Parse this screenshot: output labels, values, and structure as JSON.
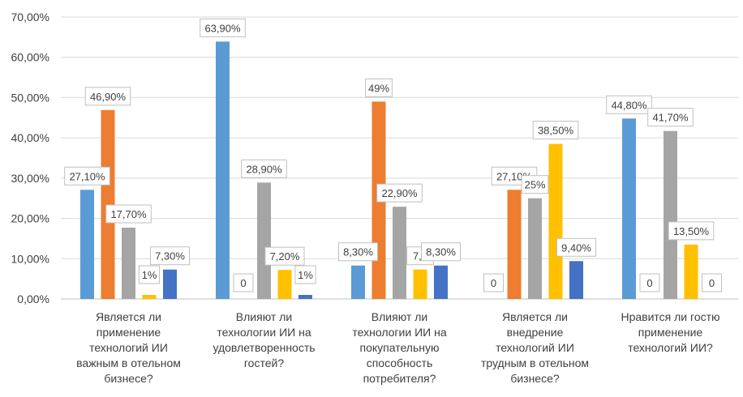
{
  "chart_data": {
    "type": "bar",
    "ylim": [
      0,
      0.7
    ],
    "y_ticks": [
      "0,00%",
      "10,00%",
      "20,00%",
      "30,00%",
      "40,00%",
      "50,00%",
      "60,00%",
      "70,00%"
    ],
    "grid": true,
    "legend": "none",
    "series_colors": [
      "#5b9bd5",
      "#ed7d31",
      "#a5a5a5",
      "#ffc000",
      "#4472c4"
    ],
    "categories": [
      {
        "label_lines": [
          "Является ли",
          "применение",
          "технологий ИИ",
          "важным в отельном",
          "бизнесе?"
        ],
        "bars": [
          {
            "series": 0,
            "value": 0.271,
            "label": "27,10%"
          },
          {
            "series": 1,
            "value": 0.469,
            "label": "46,90%"
          },
          {
            "series": 2,
            "value": 0.177,
            "label": "17,70%"
          },
          {
            "series": 3,
            "value": 0.01,
            "label": "1%"
          },
          {
            "series": 4,
            "value": 0.073,
            "label": "7,30%"
          }
        ]
      },
      {
        "label_lines": [
          "Влияют ли",
          "технологии ИИ на",
          "удовлетворенность",
          "гостей?"
        ],
        "bars": [
          {
            "series": 0,
            "value": 0.639,
            "label": "63,90%"
          },
          {
            "series": 1,
            "value": 0,
            "label": "0"
          },
          {
            "series": 2,
            "value": 0.289,
            "label": "28,90%"
          },
          {
            "series": 3,
            "value": 0.072,
            "label": "7,20%"
          },
          {
            "series": 4,
            "value": 0.01,
            "label": "1%"
          }
        ]
      },
      {
        "label_lines": [
          "Влияют ли",
          "технологии ИИ на",
          "покупательную",
          "способность",
          "потребителя?"
        ],
        "bars": [
          {
            "series": 0,
            "value": 0.083,
            "label": "8,30%"
          },
          {
            "series": 1,
            "value": 0.49,
            "label": "49%"
          },
          {
            "series": 2,
            "value": 0.229,
            "label": "22,90%"
          },
          {
            "series": 3,
            "value": 0.073,
            "label": "7,3"
          },
          {
            "series": 4,
            "value": 0.083,
            "label": "8,30%"
          }
        ]
      },
      {
        "label_lines": [
          "Является ли",
          "внедрение",
          "технологий ИИ",
          "трудным в отельном",
          "бизнесе?"
        ],
        "bars": [
          {
            "series": 0,
            "value": 0,
            "label": "0"
          },
          {
            "series": 1,
            "value": 0.271,
            "label": "27,10%"
          },
          {
            "series": 2,
            "value": 0.25,
            "label": "25%"
          },
          {
            "series": 3,
            "value": 0.385,
            "label": "38,50%"
          },
          {
            "series": 4,
            "value": 0.094,
            "label": "9,40%"
          }
        ]
      },
      {
        "label_lines": [
          "Нравится ли гостю",
          "применение",
          "технологий ИИ?"
        ],
        "bars": [
          {
            "series": 0,
            "value": 0.448,
            "label": "44,80%"
          },
          {
            "series": 1,
            "value": 0,
            "label": "0"
          },
          {
            "series": 2,
            "value": 0.417,
            "label": "41,70%"
          },
          {
            "series": 3,
            "value": 0.135,
            "label": "13,50%"
          },
          {
            "series": 4,
            "value": 0,
            "label": "0"
          }
        ]
      }
    ]
  }
}
